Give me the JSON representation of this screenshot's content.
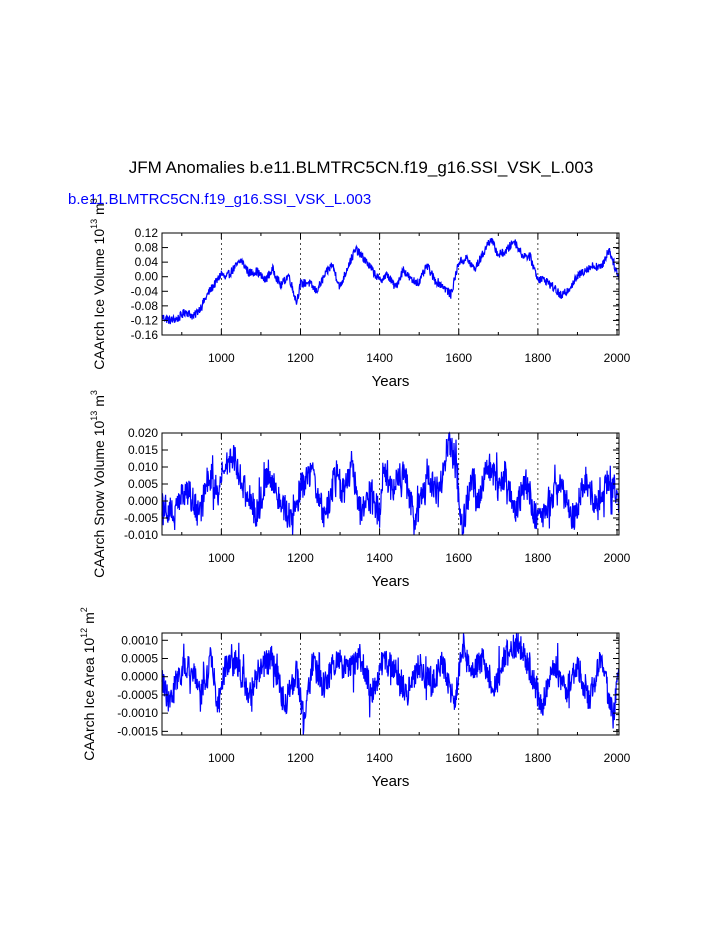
{
  "figure": {
    "title": "JFM Anomalies b.e11.BLMTRC5CN.f19_g16.SSI_VSK_L.003",
    "subtitle": "b.e11.BLMTRC5CN.f19_g16.SSI_VSK_L.003",
    "subtitle_color": "#0000ff",
    "line_color": "#0000ff"
  },
  "chart_data": [
    {
      "type": "line",
      "title": "",
      "xlabel": "Years",
      "ylabel": "CAArch Ice Volume 10",
      "ylabel_exp": "13",
      "ylabel_unit": "m",
      "ylabel_unit_exp": "3",
      "xlim": [
        850,
        2005
      ],
      "ylim": [
        -0.16,
        0.12
      ],
      "xticks": [
        "1000",
        "1200",
        "1400",
        "1600",
        "1800",
        "2000"
      ],
      "yticks": [
        "0.12",
        "0.08",
        "0.04",
        "0.00",
        "-0.04",
        "-0.08",
        "-0.12",
        "-0.16"
      ],
      "grid": "vertical dashed at 1000, 1200, 1400, 1600, 1800",
      "series": [
        {
          "name": "CAArch Ice Volume",
          "x": [
            850,
            870,
            890,
            910,
            930,
            950,
            970,
            990,
            1000,
            1010,
            1030,
            1050,
            1070,
            1090,
            1110,
            1130,
            1150,
            1170,
            1190,
            1200,
            1220,
            1240,
            1260,
            1280,
            1300,
            1320,
            1340,
            1360,
            1380,
            1400,
            1420,
            1440,
            1460,
            1480,
            1500,
            1520,
            1540,
            1560,
            1580,
            1600,
            1620,
            1640,
            1660,
            1680,
            1700,
            1720,
            1740,
            1760,
            1780,
            1800,
            1820,
            1840,
            1860,
            1880,
            1900,
            1920,
            1940,
            1960,
            1980,
            2000,
            2005
          ],
          "values": [
            -0.11,
            -0.12,
            -0.115,
            -0.095,
            -0.11,
            -0.08,
            -0.04,
            -0.01,
            0.01,
            -0.005,
            0.02,
            0.045,
            0.01,
            0.015,
            -0.01,
            0.02,
            -0.025,
            0.005,
            -0.07,
            -0.02,
            -0.015,
            -0.04,
            0.0,
            0.035,
            -0.03,
            0.03,
            0.075,
            0.05,
            0.02,
            -0.01,
            0.005,
            -0.03,
            0.02,
            -0.01,
            -0.015,
            0.03,
            -0.01,
            -0.025,
            -0.05,
            0.04,
            0.05,
            0.02,
            0.06,
            0.105,
            0.06,
            0.07,
            0.1,
            0.06,
            0.055,
            -0.005,
            -0.01,
            -0.03,
            -0.055,
            -0.03,
            0.0,
            0.02,
            0.03,
            0.025,
            0.075,
            0.01,
            -0.005
          ]
        }
      ]
    },
    {
      "type": "line",
      "title": "",
      "xlabel": "Years",
      "ylabel": "CAArch Snow Volume 10",
      "ylabel_exp": "13",
      "ylabel_unit": "m",
      "ylabel_unit_exp": "3",
      "xlim": [
        850,
        2005
      ],
      "ylim": [
        -0.01,
        0.02
      ],
      "xticks": [
        "1000",
        "1200",
        "1400",
        "1600",
        "1800",
        "2000"
      ],
      "yticks": [
        "0.020",
        "0.015",
        "0.010",
        "0.005",
        "0.000",
        "-0.005",
        "-0.010"
      ],
      "grid": "vertical dashed at 1000, 1200, 1400, 1600, 1800",
      "series": [
        {
          "name": "CAArch Snow Volume",
          "x": [
            850,
            880,
            910,
            940,
            970,
            990,
            1010,
            1030,
            1060,
            1090,
            1120,
            1150,
            1180,
            1200,
            1230,
            1260,
            1290,
            1310,
            1330,
            1350,
            1380,
            1400,
            1410,
            1430,
            1460,
            1490,
            1520,
            1550,
            1575,
            1590,
            1610,
            1630,
            1650,
            1670,
            1700,
            1720,
            1740,
            1770,
            1800,
            1830,
            1860,
            1890,
            1920,
            1950,
            1980,
            2005
          ],
          "values": [
            0.0,
            -0.004,
            0.004,
            -0.003,
            0.008,
            0.002,
            0.011,
            0.014,
            0.003,
            -0.004,
            0.009,
            0.0,
            -0.006,
            0.004,
            0.008,
            -0.005,
            0.008,
            0.002,
            0.011,
            -0.003,
            0.001,
            -0.004,
            0.011,
            0.003,
            0.009,
            -0.005,
            0.008,
            0.002,
            0.018,
            0.012,
            -0.008,
            0.007,
            0.0,
            0.012,
            0.004,
            0.009,
            -0.004,
            0.006,
            -0.007,
            0.001,
            0.004,
            -0.005,
            0.006,
            -0.002,
            0.007,
            0.0
          ]
        }
      ]
    },
    {
      "type": "line",
      "title": "",
      "xlabel": "Years",
      "ylabel": "CAArch Ice Area 10",
      "ylabel_exp": "12",
      "ylabel_unit": "m",
      "ylabel_unit_exp": "2",
      "xlim": [
        850,
        2005
      ],
      "ylim": [
        -0.0016,
        0.0012
      ],
      "xticks": [
        "1000",
        "1200",
        "1400",
        "1600",
        "1800",
        "2000"
      ],
      "yticks": [
        "0.0010",
        "0.0005",
        "0.0000",
        "-0.0005",
        "-0.0010",
        "-0.0015"
      ],
      "grid": "vertical dashed at 1000, 1200, 1400, 1600, 1800",
      "series": [
        {
          "name": "CAArch Ice Area",
          "x": [
            850,
            870,
            890,
            920,
            950,
            975,
            990,
            1010,
            1040,
            1070,
            1100,
            1130,
            1160,
            1190,
            1210,
            1230,
            1260,
            1290,
            1320,
            1350,
            1380,
            1410,
            1440,
            1470,
            1500,
            1530,
            1560,
            1590,
            1610,
            1630,
            1660,
            1690,
            1720,
            1750,
            1780,
            1810,
            1840,
            1870,
            1900,
            1930,
            1960,
            1990,
            2005
          ],
          "values": [
            0.0,
            -0.0008,
            0.0001,
            0.0003,
            -0.0004,
            0.0006,
            -0.0009,
            0.0002,
            0.0004,
            -0.0006,
            0.0003,
            0.0005,
            -0.0008,
            0.0002,
            -0.0013,
            0.0004,
            -0.0003,
            0.0005,
            0.0001,
            0.0006,
            -0.0005,
            0.0004,
            0.0002,
            -0.0005,
            0.0003,
            -0.0002,
            0.0004,
            -0.0008,
            0.0009,
            0.0001,
            0.0005,
            -0.0003,
            0.0006,
            0.0009,
            0.0002,
            -0.0009,
            0.0004,
            -0.0004,
            0.0003,
            -0.0006,
            0.0005,
            -0.0011,
            0.0001
          ]
        }
      ]
    }
  ]
}
